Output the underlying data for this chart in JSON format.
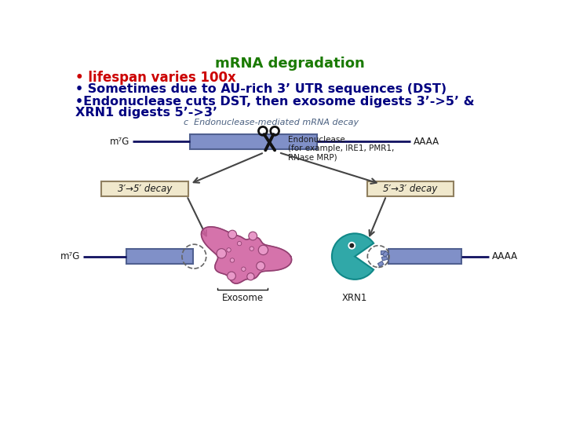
{
  "title": "mRNA degradation",
  "title_color": "#1a7a00",
  "title_fontsize": 13,
  "bullet1": "• lifespan varies 100x",
  "bullet1_color": "#cc0000",
  "bullet1_fontsize": 12,
  "bullet2": "• Sometimes due to AU-rich 3’ UTR sequences (DST)",
  "bullet2_color": "#000080",
  "bullet2_fontsize": 11.5,
  "bullet3": "•Endonuclease cuts DST, then exosome digests 3’->5’ &",
  "bullet3_color": "#000080",
  "bullet3_fontsize": 11.5,
  "bullet4": "XRN1 digests 5’->3’",
  "bullet4_color": "#000080",
  "bullet4_fontsize": 11.5,
  "diagram_label": "c  Endonuclease-mediated mRNA decay",
  "diagram_label_color": "#4a6080",
  "diagram_label_fontsize": 8,
  "mrna_bar_color": "#8090c8",
  "mrna_bar_edge_color": "#506090",
  "line_color": "#101060",
  "m7g_label": "m⁷G",
  "aaaa_label": "AAAA",
  "endonuclease_text": "Endonuclease\n(for example, IRE1, PMR1,\nRNase MRP)",
  "decay_box_color": "#f0e8cc",
  "decay_box_edge": "#908060",
  "decay_left_label": "3′→5′ decay",
  "decay_right_label": "5′→3′ decay",
  "exosome_label": "Exosome",
  "xrn1_label": "XRN1",
  "background_color": "#ffffff",
  "arrow_color": "#444444",
  "text_color": "#1a1a1a",
  "scissors_color": "#111111",
  "exosome_color": "#d060a0",
  "exosome_edge": "#904070",
  "xrn1_color": "#30a8a8",
  "xrn1_edge": "#108888"
}
